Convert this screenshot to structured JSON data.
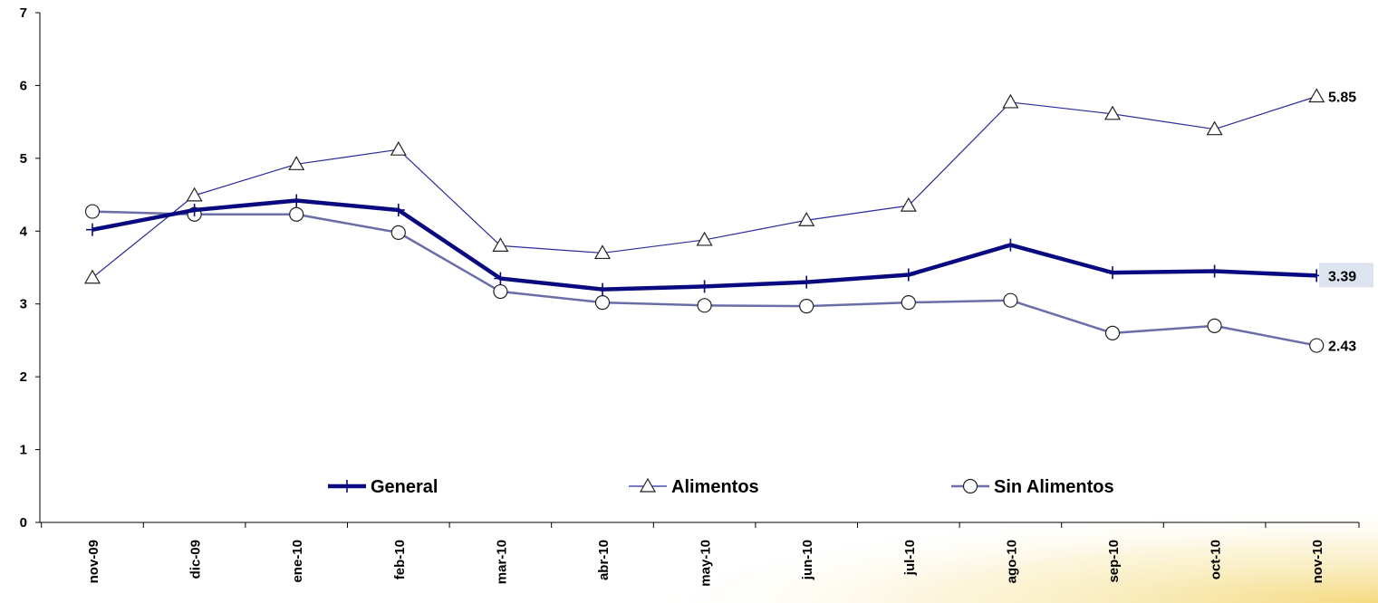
{
  "chart_data": {
    "type": "line",
    "categories": [
      "nov-09",
      "dic-09",
      "ene-10",
      "feb-10",
      "mar-10",
      "abr-10",
      "may-10",
      "jun-10",
      "jul-10",
      "ago-10",
      "sep-10",
      "oct-10",
      "nov-10"
    ],
    "ylim": [
      0,
      7
    ],
    "yticks": [
      "0",
      "1",
      "2",
      "3",
      "4",
      "5",
      "6",
      "7"
    ],
    "grid": false,
    "legend_position": "bottom-center",
    "series": [
      {
        "name": "General",
        "marker": "plus",
        "color": "#0a0a80",
        "values": [
          4.02,
          4.29,
          4.42,
          4.29,
          3.35,
          3.2,
          3.24,
          3.3,
          3.4,
          3.81,
          3.43,
          3.45,
          3.39
        ],
        "end_label": "3.39"
      },
      {
        "name": "Alimentos",
        "marker": "triangle",
        "color": "#2a2a9a",
        "values": [
          3.36,
          4.49,
          4.92,
          5.12,
          3.8,
          3.7,
          3.88,
          4.15,
          4.35,
          5.77,
          5.61,
          5.4,
          5.85
        ],
        "end_label": "5.85"
      },
      {
        "name": "Sin Alimentos",
        "marker": "circle",
        "color": "#6a6ea8",
        "values": [
          4.27,
          4.23,
          4.23,
          3.98,
          3.17,
          3.02,
          2.98,
          2.97,
          3.02,
          3.05,
          2.6,
          2.7,
          2.43
        ],
        "end_label": "2.43"
      }
    ]
  }
}
